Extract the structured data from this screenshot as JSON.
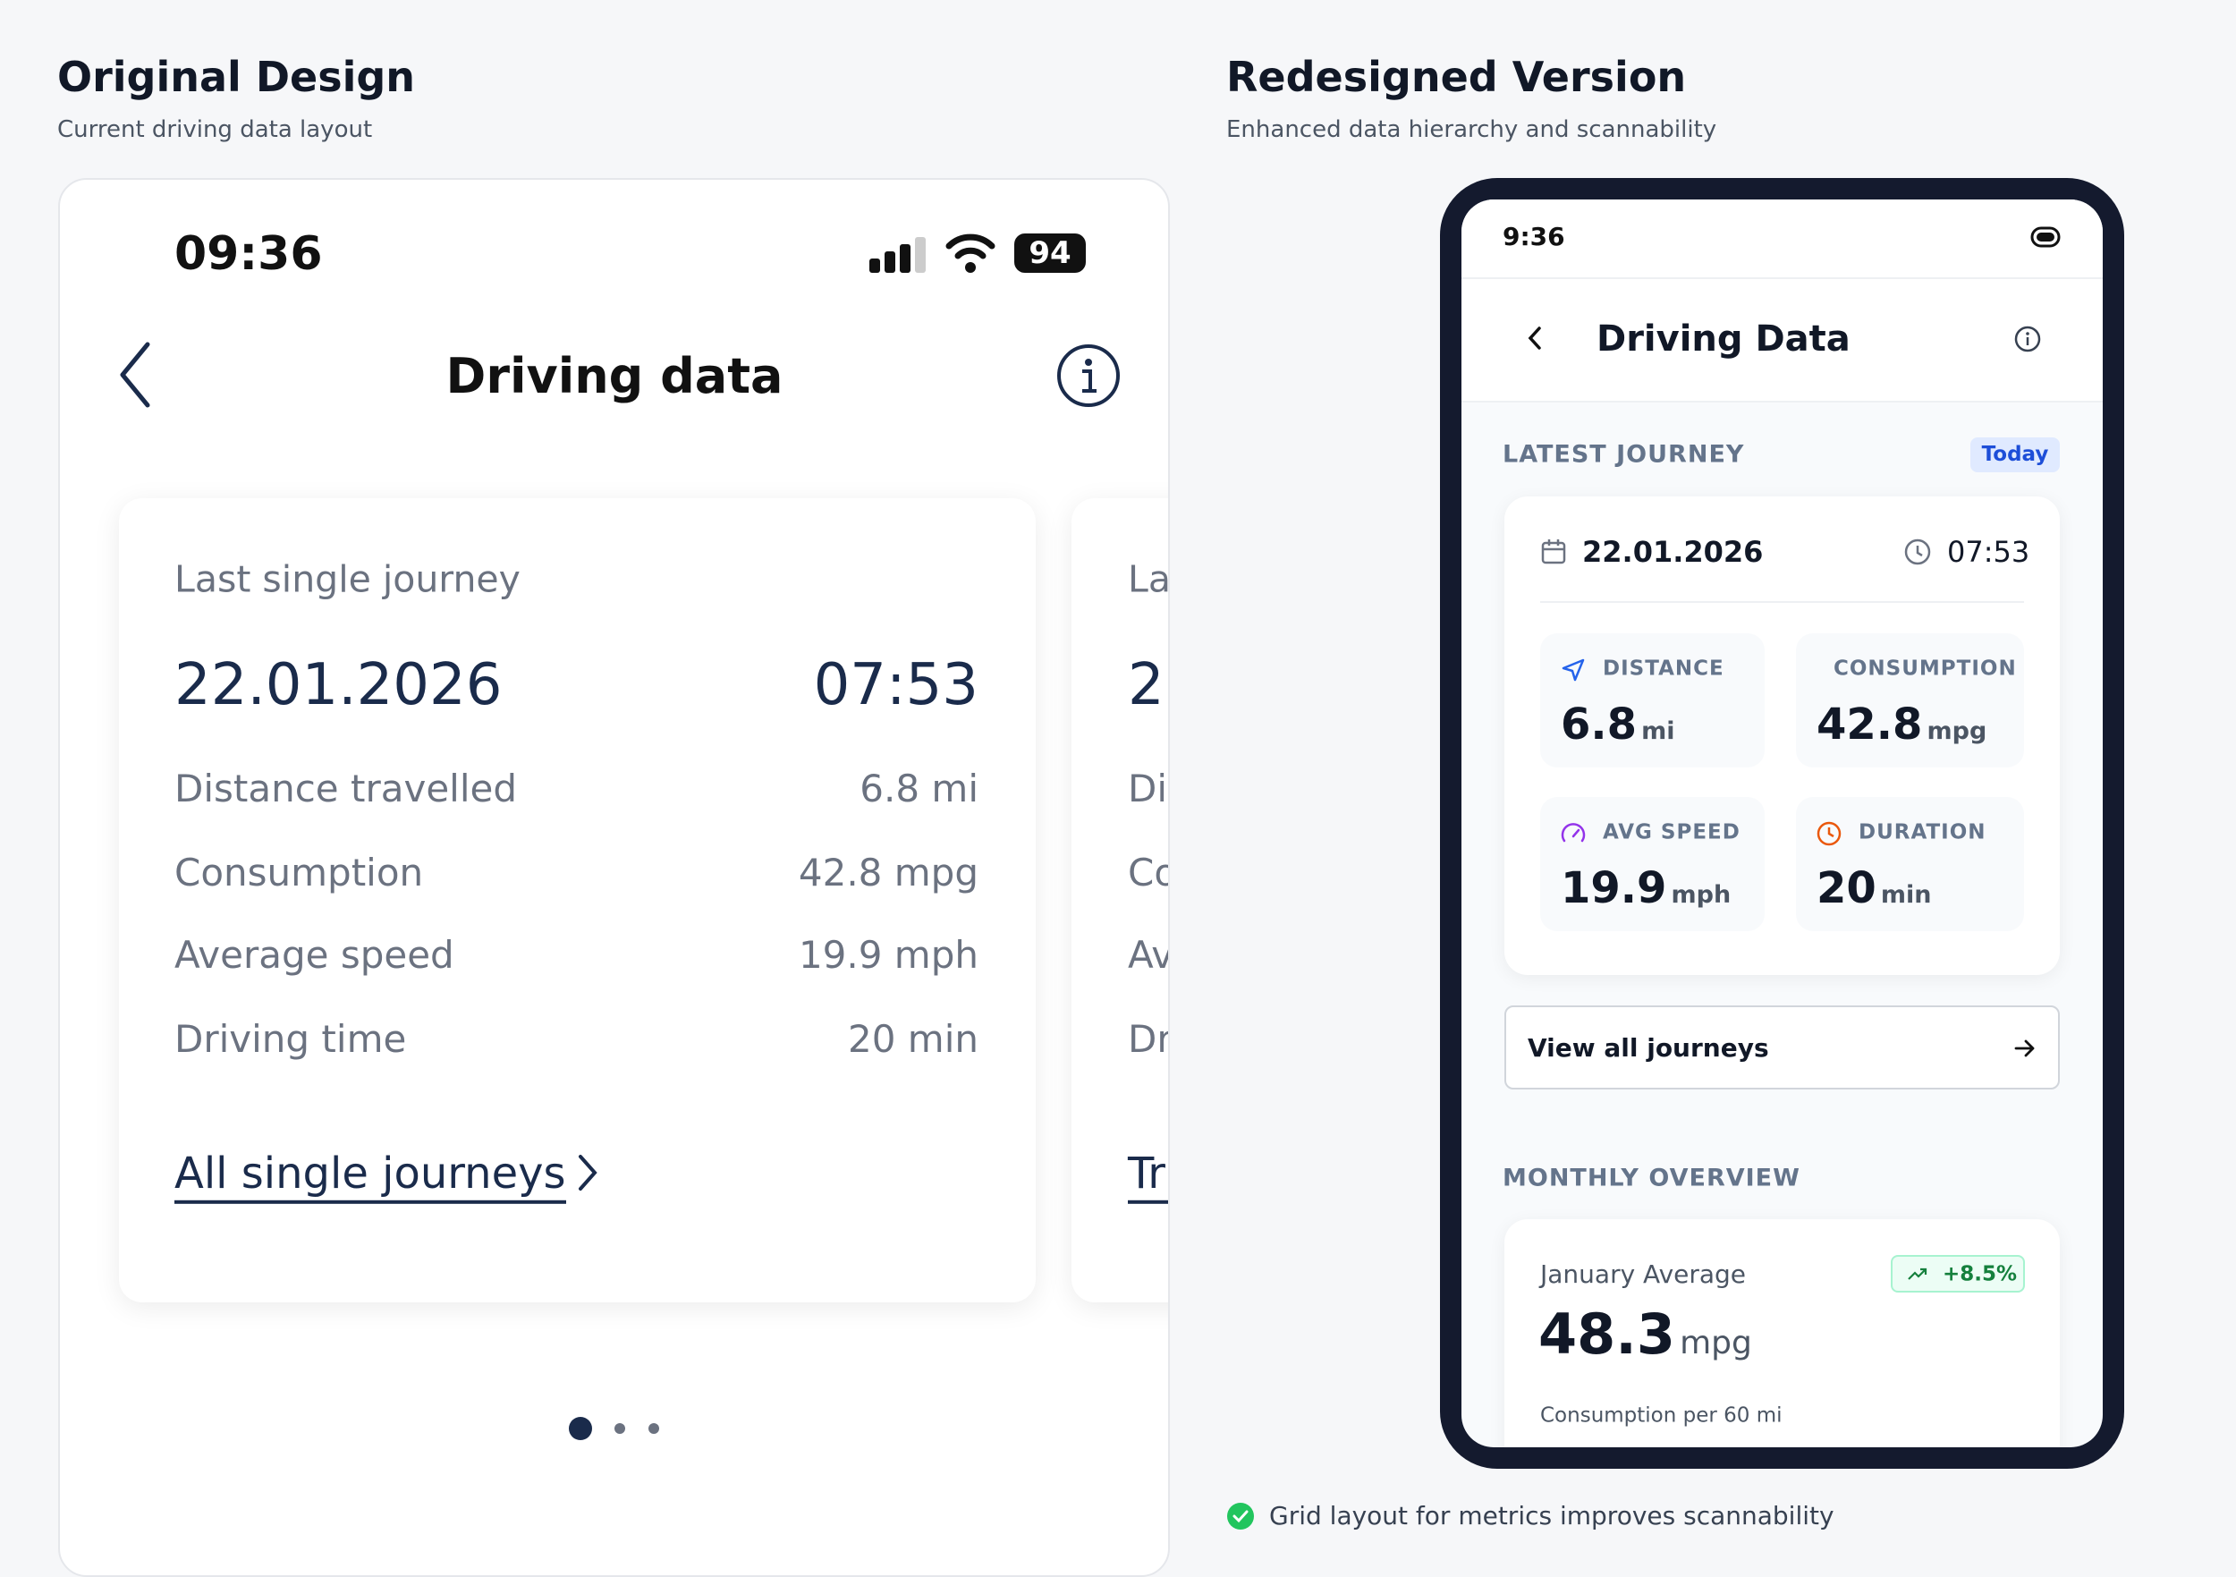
{
  "left": {
    "title": "Original Design",
    "subtitle": "Current driving data layout",
    "status_time": "09:36",
    "battery": "94",
    "header": "Driving data",
    "card": {
      "label": "Last single journey",
      "date": "22.01.2026",
      "time": "07:53",
      "rows": [
        {
          "label": "Distance travelled",
          "value": "6.8 mi"
        },
        {
          "label": "Consumption",
          "value": "42.8 mpg"
        },
        {
          "label": "Average speed",
          "value": "19.9 mph"
        },
        {
          "label": "Driving time",
          "value": "20 min"
        }
      ],
      "link": "All single journeys"
    },
    "peek_card": {
      "link": "Tri"
    }
  },
  "right": {
    "title": "Redesigned Version",
    "subtitle": "Enhanced data hierarchy and scannability",
    "status_time": "9:36",
    "header": "Driving Data",
    "latest": {
      "section": "LATEST JOURNEY",
      "badge": "Today",
      "date": "22.01.2026",
      "time": "07:53",
      "metrics": [
        {
          "label": "DISTANCE",
          "value": "6.8",
          "unit": "mi"
        },
        {
          "label": "CONSUMPTION",
          "value": "42.8",
          "unit": "mpg"
        },
        {
          "label": "AVG SPEED",
          "value": "19.9",
          "unit": "mph"
        },
        {
          "label": "DURATION",
          "value": "20",
          "unit": "min"
        }
      ],
      "button": "View all journeys"
    },
    "monthly": {
      "section": "MONTHLY OVERVIEW",
      "label": "January Average",
      "badge": "+8.5%",
      "value": "48.3",
      "unit": "mpg",
      "note": "Consumption per 60 mi"
    },
    "footnote": "Grid layout for metrics improves scannability"
  }
}
